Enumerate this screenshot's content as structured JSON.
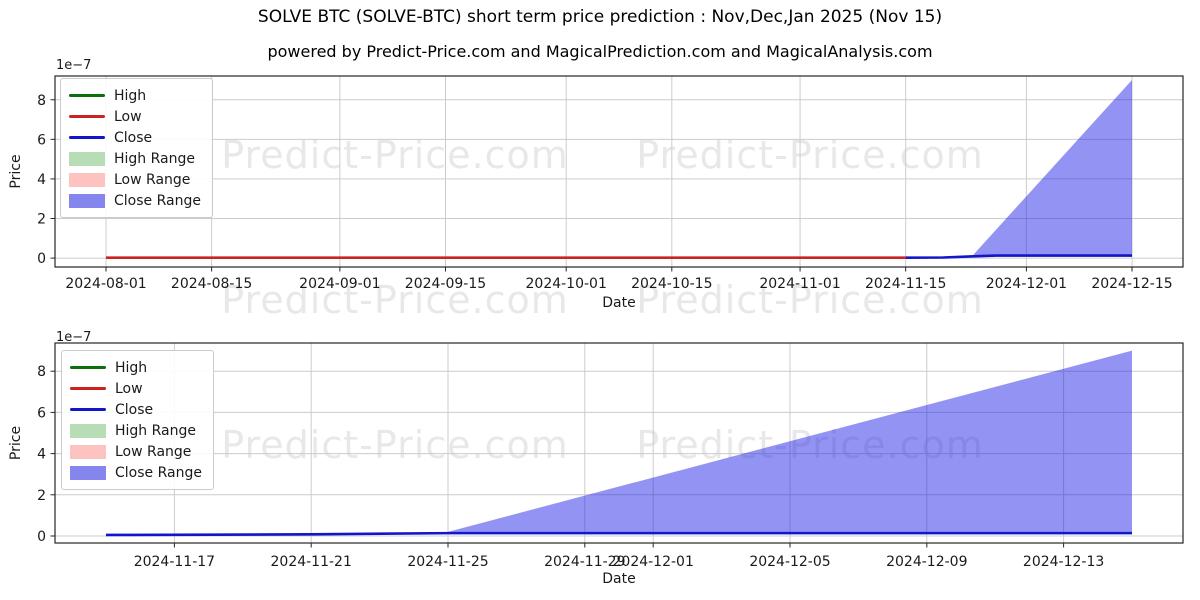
{
  "figure": {
    "title": "SOLVE BTC (SOLVE-BTC) short term price prediction : Nov,Dec,Jan 2025 (Nov 15)",
    "subtitle": "powered by Predict-Price.com and MagicalPrediction.com and MagicalAnalysis.com",
    "watermark_text": "Predict-Price.com"
  },
  "colors": {
    "high_line": "#0a6e0a",
    "low_line": "#cc2222",
    "close_line": "#1414cc",
    "high_range": "#b7ddb7",
    "low_range": "#fcc3c0",
    "close_range": "#8585ee",
    "close_range_fill": "rgba(25,25,230,0.47)",
    "grid": "#cccccc",
    "spine": "#262626",
    "text": "#1a1a1a"
  },
  "legend": {
    "position": "upper left",
    "entries": [
      {
        "label": "High",
        "type": "line",
        "color_key": "high_line"
      },
      {
        "label": "Low",
        "type": "line",
        "color_key": "low_line"
      },
      {
        "label": "Close",
        "type": "line",
        "color_key": "close_line"
      },
      {
        "label": "High Range",
        "type": "patch",
        "color_key": "high_range"
      },
      {
        "label": "Low Range",
        "type": "patch",
        "color_key": "low_range"
      },
      {
        "label": "Close Range",
        "type": "patch",
        "color_key": "close_range"
      }
    ]
  },
  "chart_data": [
    {
      "type": "line",
      "title": "powered by Predict-Price.com and MagicalPrediction.com and MagicalAnalysis.com",
      "xlabel": "Date",
      "ylabel": "Price",
      "y_offset_label": "1e−7",
      "y_unit_multiplier": "1e-7",
      "grid": true,
      "legend_position": "upper left",
      "x_range": [
        "2024-08-01",
        "2024-12-15"
      ],
      "x_ticks": [
        "2024-08-01",
        "2024-08-15",
        "2024-09-01",
        "2024-09-15",
        "2024-10-01",
        "2024-10-15",
        "2024-11-01",
        "2024-11-15",
        "2024-12-01",
        "2024-12-15"
      ],
      "y_ticks": [
        0,
        2,
        4,
        6,
        8
      ],
      "ylim": [
        -0.45,
        9.2
      ],
      "series": [
        {
          "name": "Close Range",
          "type": "band",
          "color_key": "close_range_fill",
          "upper": [
            [
              "2024-11-24",
              0.18
            ],
            [
              "2024-12-15",
              9.0
            ]
          ],
          "lower": [
            [
              "2024-11-24",
              0.1
            ],
            [
              "2024-12-15",
              0.1
            ]
          ]
        },
        {
          "name": "Close",
          "type": "line",
          "color_key": "close_line",
          "points": [
            [
              "2024-11-15",
              0.02
            ],
            [
              "2024-11-20",
              0.03
            ],
            [
              "2024-11-24",
              0.09
            ],
            [
              "2024-11-27",
              0.13
            ],
            [
              "2024-12-15",
              0.13
            ]
          ]
        },
        {
          "name": "Low",
          "type": "line",
          "color_key": "low_line",
          "points": [
            [
              "2024-08-01",
              0.02
            ],
            [
              "2024-11-15",
              0.02
            ]
          ]
        }
      ]
    },
    {
      "type": "line",
      "title": "",
      "xlabel": "Date",
      "ylabel": "Price",
      "y_offset_label": "1e−7",
      "y_unit_multiplier": "1e-7",
      "grid": true,
      "legend_position": "upper left",
      "x_range": [
        "2024-11-15",
        "2024-12-15"
      ],
      "x_ticks": [
        "2024-11-17",
        "2024-11-21",
        "2024-11-25",
        "2024-11-29",
        "2024-12-01",
        "2024-12-05",
        "2024-12-09",
        "2024-12-13"
      ],
      "y_ticks": [
        0,
        2,
        4,
        6,
        8
      ],
      "ylim": [
        -0.34,
        9.37
      ],
      "series": [
        {
          "name": "Close Range",
          "type": "band",
          "color_key": "close_range_fill",
          "upper": [
            [
              "2024-11-25",
              0.2
            ],
            [
              "2024-12-15",
              9.0
            ]
          ],
          "lower": [
            [
              "2024-11-25",
              0.12
            ],
            [
              "2024-12-15",
              0.12
            ]
          ]
        },
        {
          "name": "Close",
          "type": "line",
          "color_key": "close_line",
          "points": [
            [
              "2024-11-15",
              0.05
            ],
            [
              "2024-11-21",
              0.08
            ],
            [
              "2024-11-25",
              0.14
            ],
            [
              "2024-12-15",
              0.14
            ]
          ]
        }
      ]
    }
  ]
}
